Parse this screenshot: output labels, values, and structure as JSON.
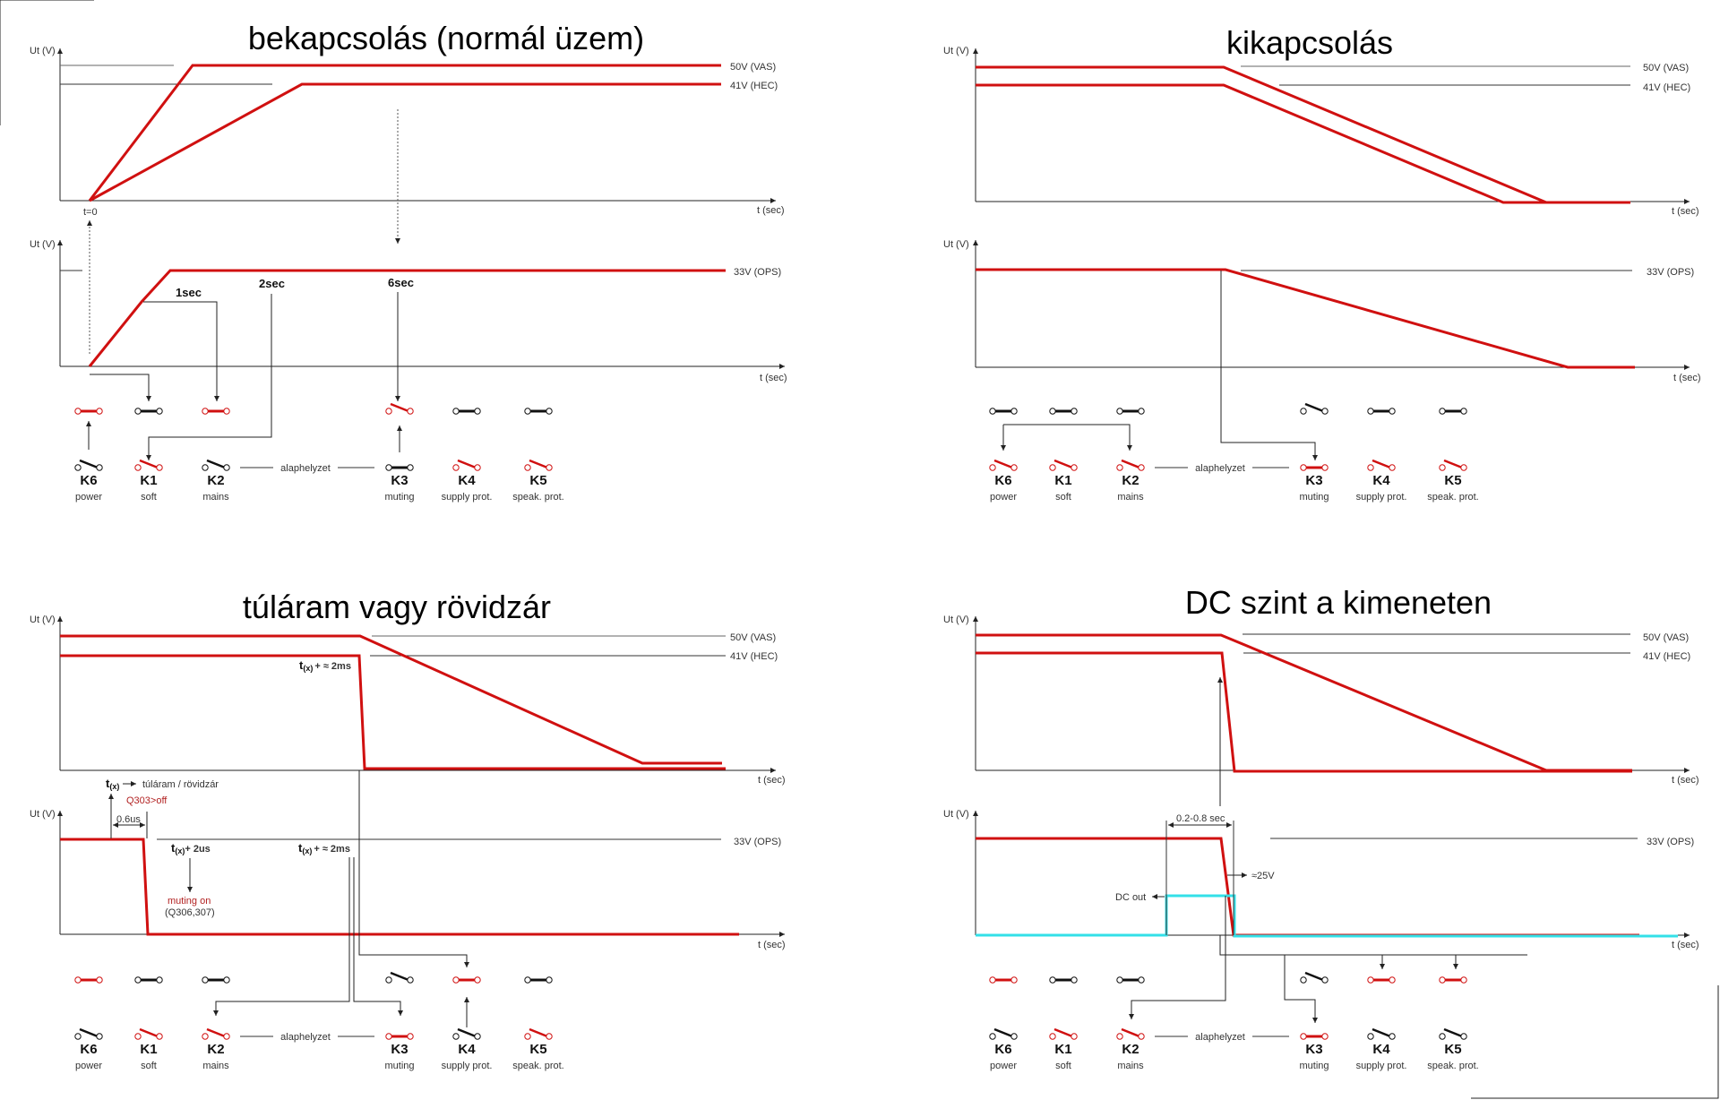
{
  "colors": {
    "trace": "#d01010",
    "dc_trace": "#33e0e8",
    "axis": "#222222",
    "ref_line": "#444444"
  },
  "common": {
    "y_axis_label": "Ut (V)",
    "x_axis_label": "t (sec)",
    "ref_vas": "50V (VAS)",
    "ref_hec": "41V (HEC)",
    "ref_ops": "33V (OPS)",
    "rest_state": "alaphelyzet",
    "relays": [
      {
        "id": "K6",
        "name": "power"
      },
      {
        "id": "K1",
        "name": "soft"
      },
      {
        "id": "K2",
        "name": "mains"
      },
      {
        "id": "K3",
        "name": "muting"
      },
      {
        "id": "K4",
        "name": "supply prot."
      },
      {
        "id": "K5",
        "name": "speak. prot."
      }
    ]
  },
  "panels": [
    {
      "key": "power_on",
      "title": "bekapcsolás (normál üzem)",
      "annotations": {
        "t0": "t=0",
        "t1": "1sec",
        "t2": "2sec",
        "t6": "6sec"
      },
      "relay_states_active": [
        "closed-red",
        "closed-black",
        "closed-red",
        "open-red",
        "closed-black",
        "closed-black"
      ],
      "relay_states_rest": [
        "open-black",
        "open-red",
        "open-black",
        "closed-black",
        "open-red",
        "open-red"
      ]
    },
    {
      "key": "power_off",
      "title": "kikapcsolás",
      "relay_states_active": [
        "closed-black",
        "closed-black",
        "closed-black",
        "open-black",
        "closed-black",
        "closed-black"
      ],
      "relay_states_rest": [
        "open-red",
        "open-red",
        "open-red",
        "closed-red",
        "open-red",
        "open-red"
      ]
    },
    {
      "key": "overcurrent",
      "title": "túláram vagy rövidzár",
      "annotations": {
        "tx_prefix": "t",
        "tx_sub": "(x)",
        "tx_meaning": "túláram / rövidzár",
        "q303": "Q303>off",
        "dt": "0.6us",
        "plus_2us": "+  2us",
        "plus_2ms": "+ ≈ 2ms",
        "muting_on": "muting on",
        "muting_q": "(Q306,307)"
      },
      "relay_states_active": [
        "closed-red",
        "closed-black",
        "closed-black",
        "open-black",
        "closed-red",
        "closed-black"
      ],
      "relay_states_rest": [
        "open-black",
        "open-red",
        "open-red",
        "closed-red",
        "open-black",
        "open-red"
      ]
    },
    {
      "key": "dc_output",
      "title": "DC szint a kimeneten",
      "annotations": {
        "window": "0.2-0.8 sec",
        "dc_out": "DC out",
        "v25": "≈25V"
      },
      "relay_states_active": [
        "closed-red",
        "closed-black",
        "closed-black",
        "open-black",
        "closed-red",
        "closed-red"
      ],
      "relay_states_rest": [
        "open-black",
        "open-red",
        "open-red",
        "closed-red",
        "open-black",
        "open-black"
      ]
    }
  ]
}
